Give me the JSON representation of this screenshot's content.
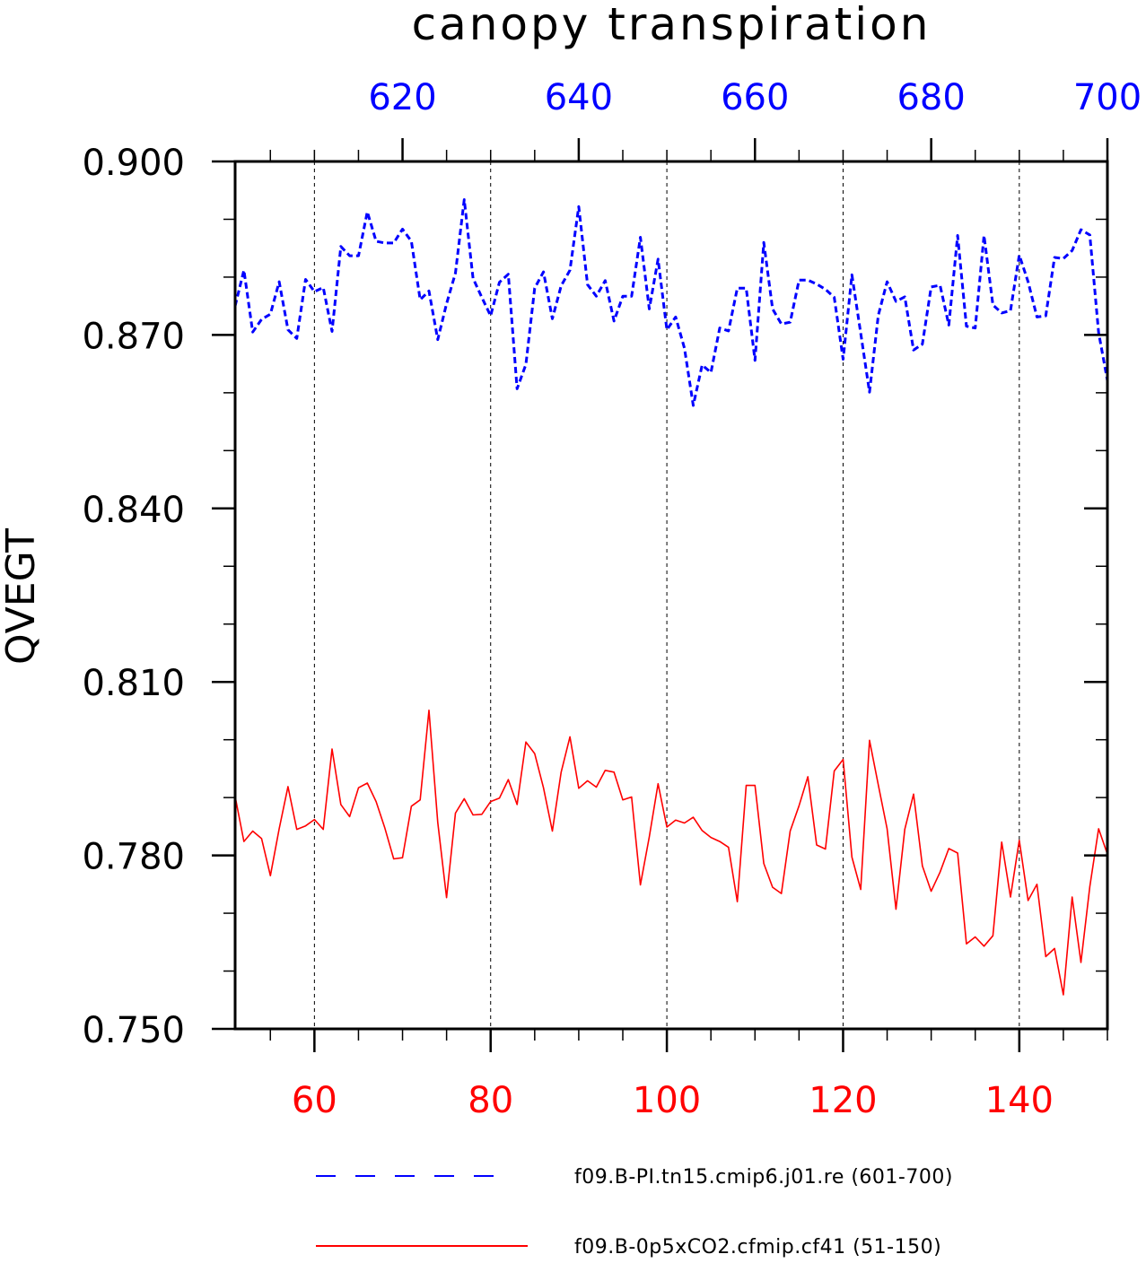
{
  "chart_data": {
    "type": "line",
    "title": "canopy transpiration",
    "ylabel": "QVEGT",
    "ylim": [
      0.75,
      0.9
    ],
    "yticks": [
      "0.900",
      "0.870",
      "0.840",
      "0.810",
      "0.780",
      "0.750"
    ],
    "ytick_values": [
      0.9,
      0.87,
      0.84,
      0.81,
      0.78,
      0.75
    ],
    "x_bottom": {
      "range": [
        51,
        150
      ],
      "ticks": [
        60,
        80,
        100,
        120,
        140
      ],
      "tick_labels": [
        "60",
        "80",
        "100",
        "120",
        "140"
      ],
      "color": "#ff0000"
    },
    "x_top": {
      "range": [
        601,
        700
      ],
      "ticks": [
        620,
        640,
        660,
        680,
        700
      ],
      "tick_labels": [
        "620",
        "640",
        "660",
        "680",
        "700"
      ],
      "color": "#0000ff"
    },
    "grid": "vertical dashed at bottom major ticks",
    "legend_position": "bottom",
    "series": [
      {
        "name": "f09.B-PI.tn15.cmip6.j01.re (601-700)",
        "axis": "top",
        "style": "dashed",
        "color": "#0000ff",
        "x_start": 601,
        "values": [
          0.875,
          0.8812,
          0.8705,
          0.8727,
          0.8736,
          0.8792,
          0.8709,
          0.8694,
          0.8796,
          0.8775,
          0.8782,
          0.8706,
          0.8853,
          0.8837,
          0.8837,
          0.8913,
          0.8862,
          0.8859,
          0.8859,
          0.8883,
          0.8862,
          0.8761,
          0.8776,
          0.8692,
          0.8754,
          0.8807,
          0.8934,
          0.8798,
          0.8765,
          0.8733,
          0.8791,
          0.8805,
          0.8607,
          0.8649,
          0.8781,
          0.8809,
          0.8728,
          0.8785,
          0.8812,
          0.8922,
          0.8787,
          0.8767,
          0.8794,
          0.8724,
          0.8767,
          0.8767,
          0.8869,
          0.8745,
          0.8831,
          0.8709,
          0.8731,
          0.8677,
          0.8578,
          0.8648,
          0.8635,
          0.8712,
          0.8707,
          0.8781,
          0.8781,
          0.8656,
          0.886,
          0.8745,
          0.8719,
          0.8722,
          0.8795,
          0.8795,
          0.8788,
          0.8779,
          0.8765,
          0.8658,
          0.8804,
          0.8703,
          0.8601,
          0.8734,
          0.8792,
          0.8758,
          0.8766,
          0.8674,
          0.8684,
          0.8783,
          0.8786,
          0.8717,
          0.8872,
          0.8715,
          0.8712,
          0.8872,
          0.8752,
          0.8738,
          0.8742,
          0.8838,
          0.8792,
          0.8731,
          0.8733,
          0.8834,
          0.8832,
          0.8846,
          0.8882,
          0.8873,
          0.8704,
          0.8621
        ]
      },
      {
        "name": "f09.B-0p5xCO2.cfmip.cf41 (51-150)",
        "axis": "bottom",
        "style": "solid",
        "color": "#ff0000",
        "x_start": 51,
        "values": [
          0.7902,
          0.7824,
          0.7842,
          0.7829,
          0.7765,
          0.7846,
          0.7919,
          0.7845,
          0.7851,
          0.7862,
          0.7845,
          0.7984,
          0.7888,
          0.7867,
          0.7917,
          0.7925,
          0.7893,
          0.7847,
          0.7794,
          0.7796,
          0.7885,
          0.7896,
          0.8051,
          0.7857,
          0.7727,
          0.7873,
          0.7898,
          0.787,
          0.7871,
          0.7893,
          0.7899,
          0.7931,
          0.7888,
          0.7996,
          0.7976,
          0.7917,
          0.7842,
          0.7944,
          0.8005,
          0.7916,
          0.7929,
          0.7918,
          0.7947,
          0.7944,
          0.7896,
          0.7901,
          0.7749,
          0.7832,
          0.7924,
          0.7849,
          0.7861,
          0.7856,
          0.7866,
          0.7843,
          0.7831,
          0.7824,
          0.7814,
          0.772,
          0.7921,
          0.7921,
          0.7786,
          0.7745,
          0.7734,
          0.7842,
          0.7886,
          0.7936,
          0.7818,
          0.7811,
          0.7946,
          0.7966,
          0.7797,
          0.7741,
          0.7999,
          0.7922,
          0.7846,
          0.7707,
          0.7845,
          0.7906,
          0.7782,
          0.7738,
          0.7771,
          0.7812,
          0.7804,
          0.7647,
          0.7659,
          0.7643,
          0.7661,
          0.7823,
          0.7728,
          0.7826,
          0.7722,
          0.775,
          0.7625,
          0.7639,
          0.7559,
          0.7728,
          0.7615,
          0.7746,
          0.7846,
          0.7802
        ]
      }
    ]
  }
}
